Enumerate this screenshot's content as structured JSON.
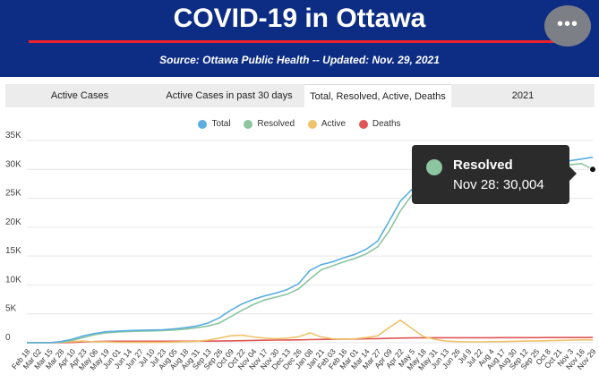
{
  "header": {
    "title": "COVID-19 in Ottawa",
    "subtitle": "Source:  Ottawa Public Health -- Updated:  Nov. 29, 2021",
    "menu_icon": "more-horizontal-icon",
    "menu_glyph": "•••"
  },
  "tabs": [
    {
      "label": "Active Cases",
      "active": false
    },
    {
      "label": "Active Cases in past 30 days",
      "active": false
    },
    {
      "label": "Total, Resolved, Active, Deaths",
      "active": true
    },
    {
      "label": "2021",
      "active": false
    }
  ],
  "tooltip": {
    "series": "Resolved",
    "date": "Nov 28",
    "value": "30,004",
    "text": "Nov 28: 30,004",
    "color": "#8cc5a0"
  },
  "chart_data": {
    "type": "line",
    "ylim": [
      0,
      35000
    ],
    "yticks": [
      0,
      5000,
      10000,
      15000,
      20000,
      25000,
      30000,
      35000
    ],
    "ytick_labels": [
      "0",
      "5K",
      "10K",
      "15K",
      "20K",
      "25K",
      "30K",
      "35K"
    ],
    "grid": true,
    "legend": "top-center",
    "x_tick_labels": [
      "Feb 18",
      "Mar 02",
      "Mar 15",
      "Mar 28",
      "Apr 10",
      "Apr 23",
      "May 06",
      "May 19",
      "Jun 01",
      "Jun 14",
      "Jun 27",
      "Jul 10",
      "Jul 23",
      "Aug 05",
      "Aug 18",
      "Aug 31",
      "Sep 13",
      "Sep 26",
      "Oct 09",
      "Oct 22",
      "Nov 04",
      "Nov 17",
      "Nov 30",
      "Dec 13",
      "Dec 26",
      "Jan 08",
      "Jan 21",
      "Feb 03",
      "Feb 16",
      "Mar 01",
      "Mar 14",
      "Mar 27",
      "Apr 09",
      "Apr 22",
      "May 5",
      "May 18",
      "May 31",
      "Jun 13",
      "Jun 26",
      "Jul 9",
      "Jul 22",
      "Aug 4",
      "Aug 17",
      "Aug 30",
      "Sep 12",
      "Sep 25",
      "Oct 8",
      "Oct 21",
      "Nov 3",
      "Nov 16",
      "Nov 29"
    ],
    "series": [
      {
        "name": "Total",
        "color": "#5aaee0",
        "values": [
          0,
          0,
          0,
          200,
          600,
          1200,
          1600,
          1900,
          2000,
          2100,
          2150,
          2200,
          2250,
          2400,
          2600,
          2900,
          3400,
          4300,
          5600,
          6700,
          7500,
          8100,
          8600,
          9200,
          10200,
          12500,
          13500,
          14000,
          14700,
          15300,
          16200,
          17600,
          21000,
          24500,
          26500,
          27600,
          28400,
          28800,
          29100,
          29300,
          29500,
          29700,
          29900,
          30100,
          30400,
          30600,
          30900,
          31200,
          31500,
          31800,
          32100
        ]
      },
      {
        "name": "Resolved",
        "color": "#8cc5a0",
        "values": [
          0,
          0,
          0,
          100,
          400,
          900,
          1400,
          1700,
          1850,
          1950,
          2000,
          2050,
          2100,
          2200,
          2350,
          2600,
          2900,
          3400,
          4500,
          5600,
          6600,
          7400,
          7900,
          8400,
          9300,
          11000,
          12600,
          13300,
          14000,
          14600,
          15400,
          16600,
          19300,
          22800,
          25500,
          27000,
          27900,
          28400,
          28700,
          28900,
          29100,
          29300,
          29500,
          29700,
          29900,
          30100,
          30300,
          30500,
          30800,
          31000,
          30004
        ]
      },
      {
        "name": "Active",
        "color": "#eec36a",
        "values": [
          0,
          0,
          0,
          100,
          200,
          300,
          150,
          150,
          80,
          70,
          60,
          60,
          70,
          120,
          180,
          250,
          450,
          800,
          1200,
          1300,
          1000,
          800,
          700,
          800,
          1000,
          1700,
          1000,
          700,
          600,
          700,
          900,
          1200,
          2600,
          3900,
          2500,
          1100,
          600,
          300,
          200,
          150,
          150,
          200,
          200,
          250,
          300,
          300,
          350,
          400,
          450,
          500,
          500
        ]
      },
      {
        "name": "Deaths",
        "color": "#e05555",
        "values": [
          0,
          0,
          0,
          10,
          50,
          150,
          200,
          250,
          260,
          265,
          265,
          265,
          265,
          267,
          270,
          275,
          280,
          295,
          320,
          360,
          400,
          430,
          460,
          480,
          500,
          540,
          580,
          610,
          630,
          650,
          680,
          720,
          760,
          800,
          830,
          850,
          860,
          865,
          868,
          870,
          872,
          874,
          876,
          880,
          885,
          890,
          895,
          898,
          900,
          905,
          910
        ]
      }
    ]
  }
}
